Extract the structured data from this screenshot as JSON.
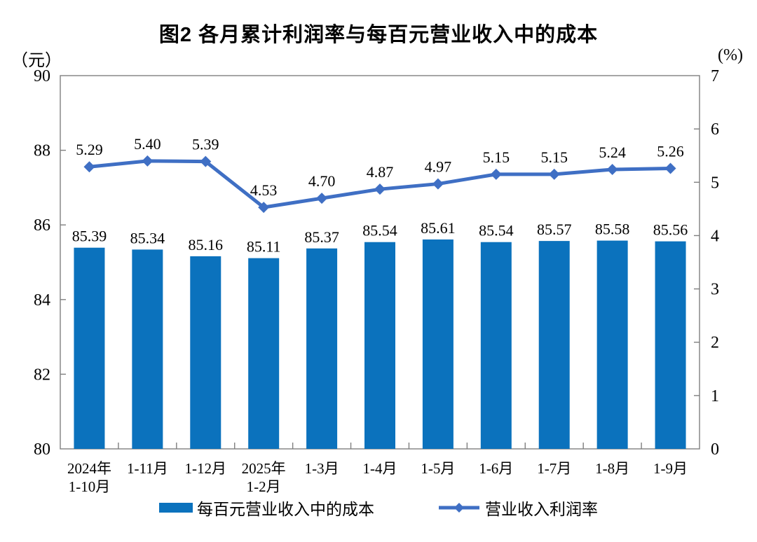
{
  "title": "图2 各月累计利润率与每百元营业收入中的成本",
  "left_axis_unit": "（元）",
  "right_axis_unit": "(%)",
  "colors": {
    "bar": "#0b72bd",
    "line": "#3f6fc4",
    "axis": "#7f7f7f",
    "text": "#000000"
  },
  "chart_data": {
    "type": "bar",
    "subtype": "bar+line combo, dual axis",
    "categories": [
      [
        "2024年",
        "1-10月"
      ],
      [
        "1-11月"
      ],
      [
        "1-12月"
      ],
      [
        "2025年",
        "1-2月"
      ],
      [
        "1-3月"
      ],
      [
        "1-4月"
      ],
      [
        "1-5月"
      ],
      [
        "1-6月"
      ],
      [
        "1-7月"
      ],
      [
        "1-8月"
      ],
      [
        "1-9月"
      ]
    ],
    "series": [
      {
        "name": "每百元营业收入中的成本",
        "type": "bar",
        "axis": "left",
        "values": [
          85.39,
          85.34,
          85.16,
          85.11,
          85.37,
          85.54,
          85.61,
          85.54,
          85.57,
          85.58,
          85.56
        ]
      },
      {
        "name": "营业收入利润率",
        "type": "line",
        "axis": "right",
        "values": [
          5.29,
          5.4,
          5.39,
          4.53,
          4.7,
          4.87,
          4.97,
          5.15,
          5.15,
          5.24,
          5.26
        ]
      }
    ],
    "left_axis": {
      "label": "（元）",
      "min": 80,
      "max": 90,
      "ticks": [
        90,
        88,
        86,
        84,
        82,
        80
      ]
    },
    "right_axis": {
      "label": "(%)",
      "min": 0,
      "max": 7,
      "ticks": [
        7,
        6,
        5,
        4,
        3,
        2,
        1,
        0
      ]
    },
    "grid": false,
    "data_labels": true,
    "legend_position": "bottom"
  }
}
